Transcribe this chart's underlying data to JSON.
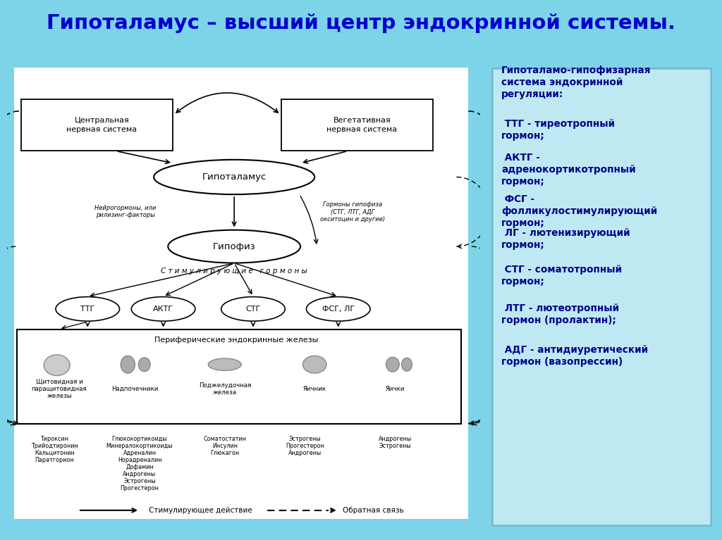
{
  "title": "Гипоталамус – высший центр эндокринной системы.",
  "title_bg": "#FFD700",
  "title_color": "#0000CD",
  "main_bg": "#7DD4E8",
  "left_panel_bg": "#D8F0F8",
  "right_panel_bg": "#B8E4F4",
  "right_border_color": "#5599BB",
  "text_color_dark": "#00008B",
  "cns_label": "Центральная\nнервная система",
  "vns_label": "Вегетативная\nнервная система",
  "hypothalamus_label": "Гипоталамус",
  "pituitary_label": "Гипофиз",
  "neurohormones_label": "Нейрогормоны, или\nрилизинг-факторы",
  "pituitary_hormones_label": "Гормоны гипофиза\n(СТГ, ЛТГ, АДГ\nокситоцин и другие)",
  "stimulating_label": "С т и м у л и р у ю щ и е   г о р м о н ы",
  "peripheral_label": "Периферические эндокринные железы",
  "hormone_nodes": [
    "ТТГ",
    "АКТГ",
    "СТГ",
    "ФСГ, ЛГ"
  ],
  "gland_labels": [
    "Щитовидная и\nпаращитовидная\nжелезы",
    "Надпочечники",
    "Поджелудочная\nжелеза",
    "Яичник",
    "Яички"
  ],
  "hormone_outputs": [
    "Тироксин\nТрийодтиронин\nКальцитонин\nПаратгорион",
    "Глюкокортикоиды\nМинералокортикоиды\nАдреналин\nНорадреналин\nДофамин\nАндрогены\nЭстрогены\nПрогестерон",
    "Соматостатин\nИнсулин\nГлюкагон",
    "Эстрогены\nПрогестерон\nАндрогены",
    "Андрогены\nЭстрогены"
  ],
  "right_header": "Гипоталамо-гипофизарная\nсистема эндокринной\nрегуляции:",
  "right_items": [
    " ТТГ - тиреотропный\nгормон;",
    " АКТГ -\nадренокортикотропный\nгормон;",
    " ФСГ -\nфолликулостимулирующий\nгормон;",
    " ЛГ - лютенизирующий\nгормон;",
    " СТГ - соматотропный\nгормон;",
    " ЛТГ - лютеотропный\nгормон (пролактин);",
    " АДГ - антидиуретический\nгормон (вазопрессин)"
  ]
}
